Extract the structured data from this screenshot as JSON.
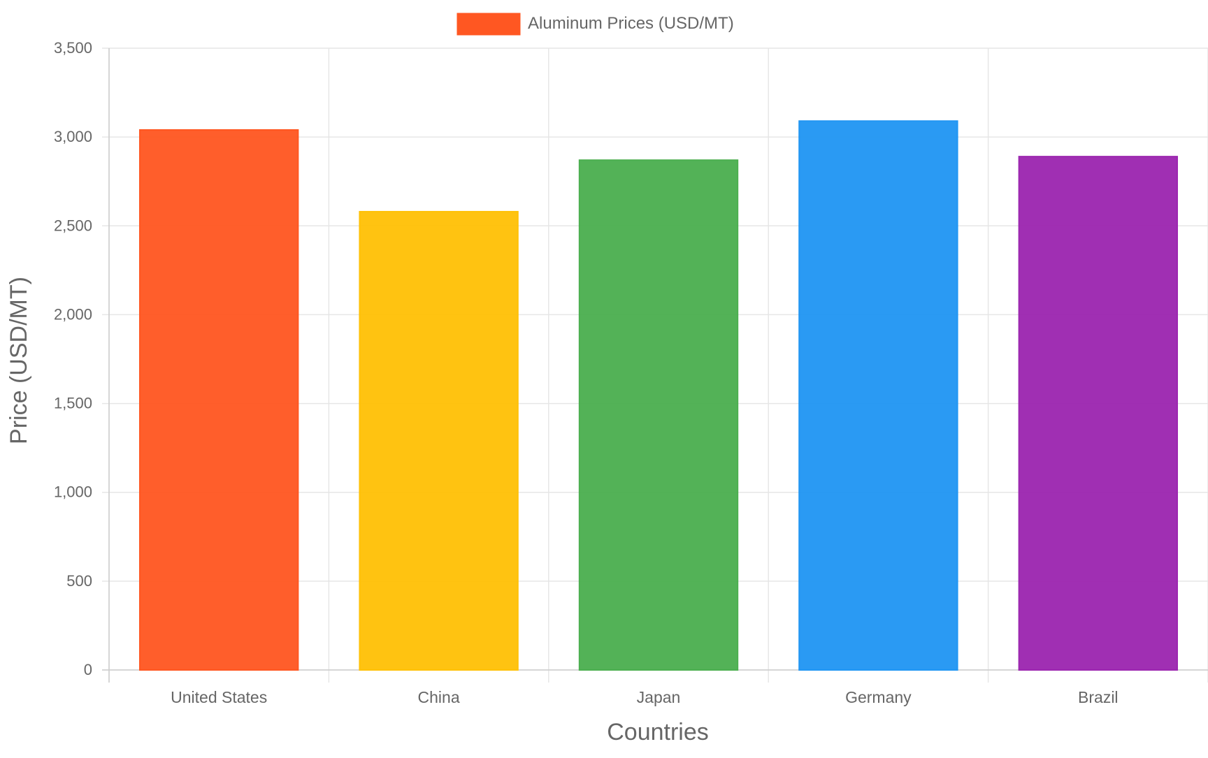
{
  "chart_data": {
    "type": "bar",
    "categories": [
      "United States",
      "China",
      "Japan",
      "Germany",
      "Brazil"
    ],
    "series": [
      {
        "name": "Aluminum Prices (USD/MT)",
        "values": [
          3040,
          2580,
          2870,
          3090,
          2890
        ]
      }
    ],
    "colors": [
      "#FF5722",
      "#FFC107",
      "#4CAF50",
      "#2196F3",
      "#9C27B0"
    ],
    "xlabel": "Countries",
    "ylabel": "Price (USD/MT)",
    "ylim": [
      0,
      3500
    ],
    "yticks": [
      0,
      500,
      1000,
      1500,
      2000,
      2500,
      3000,
      3500
    ],
    "ytick_labels": [
      "0",
      "500",
      "1,000",
      "1,500",
      "2,000",
      "2,500",
      "3,000",
      "3,500"
    ],
    "grid": true,
    "legend_position": "top-center"
  }
}
